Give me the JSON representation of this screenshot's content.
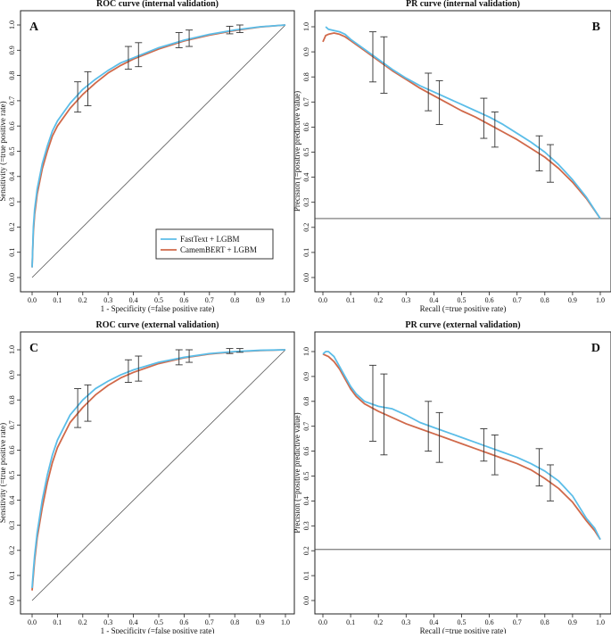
{
  "panels": [
    {
      "id": "A",
      "title": "ROC curve (internal validation)",
      "xlabel": "1 - Specificity (=false positive rate)",
      "ylabel": "Sensitivity (=true positive rate)",
      "type": "roc",
      "diagonal": true,
      "legend": true
    },
    {
      "id": "B",
      "title": "PR curve (internal validation)",
      "xlabel": "Recall (=true positive rate)",
      "ylabel": "Precision (=positive predictive value)",
      "type": "pr",
      "baseline": 0.235,
      "legend": false
    },
    {
      "id": "C",
      "title": "ROC curve (external validation)",
      "xlabel": "1 - Specificity (=false positive rate)",
      "ylabel": "Sensitivity (=true positive rate)",
      "type": "roc",
      "diagonal": true,
      "legend": false
    },
    {
      "id": "D",
      "title": "PR curve (external validation)",
      "xlabel": "Recall (=true positive rate)",
      "ylabel": "Precision (=positive predictive value)",
      "type": "pr",
      "baseline": 0.205,
      "legend": false
    }
  ],
  "legend": {
    "placement": "bottom-right",
    "entries": [
      {
        "label": "FastText + LGBM",
        "color": "#5bbde8"
      },
      {
        "label": "CamemBERT + LGBM",
        "color": "#d0694a"
      }
    ]
  },
  "ticks": [
    "0.0",
    "0.1",
    "0.2",
    "0.3",
    "0.4",
    "0.5",
    "0.6",
    "0.7",
    "0.8",
    "0.9",
    "1.0"
  ],
  "chart_data": [
    {
      "type": "line",
      "panel": "A",
      "title": "ROC curve (internal validation)",
      "xlabel": "1 - Specificity (=false positive rate)",
      "ylabel": "Sensitivity (=true positive rate)",
      "xlim": [
        0,
        1
      ],
      "ylim": [
        0,
        1
      ],
      "series": [
        {
          "name": "FastText + LGBM",
          "color": "#5bbde8",
          "x": [
            0,
            0.005,
            0.01,
            0.02,
            0.04,
            0.06,
            0.08,
            0.1,
            0.15,
            0.2,
            0.25,
            0.3,
            0.35,
            0.4,
            0.5,
            0.6,
            0.7,
            0.8,
            0.9,
            1.0
          ],
          "y": [
            0.04,
            0.2,
            0.27,
            0.35,
            0.45,
            0.52,
            0.58,
            0.62,
            0.69,
            0.745,
            0.785,
            0.82,
            0.85,
            0.87,
            0.91,
            0.94,
            0.963,
            0.98,
            0.993,
            1.0
          ]
        },
        {
          "name": "CamemBERT + LGBM",
          "color": "#d0694a",
          "x": [
            0,
            0.005,
            0.01,
            0.02,
            0.04,
            0.06,
            0.08,
            0.1,
            0.15,
            0.2,
            0.25,
            0.3,
            0.35,
            0.4,
            0.5,
            0.6,
            0.7,
            0.8,
            0.9,
            1.0
          ],
          "y": [
            0.04,
            0.18,
            0.25,
            0.33,
            0.43,
            0.5,
            0.56,
            0.6,
            0.67,
            0.725,
            0.77,
            0.81,
            0.84,
            0.865,
            0.905,
            0.937,
            0.96,
            0.978,
            0.992,
            1.0
          ]
        }
      ],
      "error_bars": [
        {
          "x": 0.18,
          "low": 0.655,
          "high": 0.775
        },
        {
          "x": 0.22,
          "low": 0.68,
          "high": 0.815
        },
        {
          "x": 0.38,
          "low": 0.825,
          "high": 0.915
        },
        {
          "x": 0.42,
          "low": 0.835,
          "high": 0.93
        },
        {
          "x": 0.58,
          "low": 0.91,
          "high": 0.97
        },
        {
          "x": 0.62,
          "low": 0.915,
          "high": 0.98
        },
        {
          "x": 0.78,
          "low": 0.965,
          "high": 0.995
        },
        {
          "x": 0.82,
          "low": 0.97,
          "high": 1.0
        }
      ]
    },
    {
      "type": "line",
      "panel": "B",
      "title": "PR curve (internal validation)",
      "xlabel": "Recall (=true positive rate)",
      "ylabel": "Precision (=positive predictive value)",
      "xlim": [
        0,
        1
      ],
      "ylim": [
        0,
        1
      ],
      "baseline": 0.235,
      "series": [
        {
          "name": "FastText + LGBM",
          "color": "#5bbde8",
          "x": [
            0.01,
            0.02,
            0.04,
            0.06,
            0.08,
            0.1,
            0.15,
            0.2,
            0.25,
            0.3,
            0.35,
            0.4,
            0.45,
            0.5,
            0.55,
            0.6,
            0.65,
            0.7,
            0.75,
            0.8,
            0.85,
            0.9,
            0.95,
            1.0
          ],
          "y": [
            1.0,
            0.99,
            0.985,
            0.98,
            0.97,
            0.95,
            0.91,
            0.87,
            0.83,
            0.795,
            0.765,
            0.74,
            0.715,
            0.69,
            0.665,
            0.64,
            0.61,
            0.575,
            0.54,
            0.5,
            0.45,
            0.39,
            0.32,
            0.235
          ]
        },
        {
          "name": "CamemBERT + LGBM",
          "color": "#d0694a",
          "x": [
            0.0,
            0.01,
            0.02,
            0.04,
            0.06,
            0.08,
            0.1,
            0.15,
            0.2,
            0.25,
            0.3,
            0.35,
            0.4,
            0.45,
            0.5,
            0.55,
            0.6,
            0.65,
            0.7,
            0.75,
            0.8,
            0.85,
            0.9,
            0.95,
            1.0
          ],
          "y": [
            0.94,
            0.965,
            0.97,
            0.975,
            0.97,
            0.96,
            0.945,
            0.905,
            0.865,
            0.825,
            0.79,
            0.755,
            0.725,
            0.695,
            0.665,
            0.64,
            0.61,
            0.58,
            0.55,
            0.515,
            0.48,
            0.435,
            0.38,
            0.315,
            0.235
          ]
        }
      ],
      "error_bars": [
        {
          "x": 0.18,
          "low": 0.78,
          "high": 0.98
        },
        {
          "x": 0.22,
          "low": 0.735,
          "high": 0.96
        },
        {
          "x": 0.38,
          "low": 0.665,
          "high": 0.815
        },
        {
          "x": 0.42,
          "low": 0.61,
          "high": 0.785
        },
        {
          "x": 0.58,
          "low": 0.555,
          "high": 0.715
        },
        {
          "x": 0.62,
          "low": 0.52,
          "high": 0.66
        },
        {
          "x": 0.78,
          "low": 0.425,
          "high": 0.565
        },
        {
          "x": 0.82,
          "low": 0.38,
          "high": 0.53
        }
      ]
    },
    {
      "type": "line",
      "panel": "C",
      "title": "ROC curve (external validation)",
      "xlabel": "1 - Specificity (=false positive rate)",
      "ylabel": "Sensitivity (=true positive rate)",
      "xlim": [
        0,
        1
      ],
      "ylim": [
        0,
        1
      ],
      "series": [
        {
          "name": "FastText + LGBM",
          "color": "#5bbde8",
          "x": [
            0,
            0.005,
            0.01,
            0.02,
            0.04,
            0.06,
            0.08,
            0.1,
            0.15,
            0.2,
            0.25,
            0.3,
            0.35,
            0.4,
            0.5,
            0.6,
            0.7,
            0.8,
            0.9,
            1.0
          ],
          "y": [
            0.05,
            0.12,
            0.18,
            0.27,
            0.4,
            0.5,
            0.58,
            0.64,
            0.74,
            0.8,
            0.845,
            0.875,
            0.9,
            0.92,
            0.95,
            0.97,
            0.985,
            0.993,
            0.998,
            1.0
          ]
        },
        {
          "name": "CamemBERT + LGBM",
          "color": "#d0694a",
          "x": [
            0,
            0.005,
            0.01,
            0.02,
            0.04,
            0.06,
            0.08,
            0.1,
            0.15,
            0.2,
            0.25,
            0.3,
            0.35,
            0.4,
            0.5,
            0.6,
            0.7,
            0.8,
            0.9,
            1.0
          ],
          "y": [
            0.04,
            0.1,
            0.16,
            0.25,
            0.37,
            0.47,
            0.55,
            0.61,
            0.71,
            0.77,
            0.82,
            0.858,
            0.888,
            0.91,
            0.945,
            0.968,
            0.983,
            0.992,
            0.997,
            1.0
          ]
        }
      ],
      "error_bars": [
        {
          "x": 0.18,
          "low": 0.69,
          "high": 0.845
        },
        {
          "x": 0.22,
          "low": 0.715,
          "high": 0.86
        },
        {
          "x": 0.38,
          "low": 0.87,
          "high": 0.96
        },
        {
          "x": 0.42,
          "low": 0.875,
          "high": 0.975
        },
        {
          "x": 0.58,
          "low": 0.94,
          "high": 1.0
        },
        {
          "x": 0.62,
          "low": 0.95,
          "high": 1.0
        },
        {
          "x": 0.78,
          "low": 0.985,
          "high": 1.005
        },
        {
          "x": 0.82,
          "low": 0.99,
          "high": 1.005
        }
      ]
    },
    {
      "type": "line",
      "panel": "D",
      "title": "PR curve (external validation)",
      "xlabel": "Recall (=true positive rate)",
      "ylabel": "Precision (=positive predictive value)",
      "xlim": [
        0,
        1
      ],
      "ylim": [
        0,
        1
      ],
      "baseline": 0.205,
      "series": [
        {
          "name": "FastText + LGBM",
          "color": "#5bbde8",
          "x": [
            0.0,
            0.01,
            0.02,
            0.04,
            0.06,
            0.08,
            0.1,
            0.12,
            0.15,
            0.2,
            0.25,
            0.3,
            0.35,
            0.4,
            0.45,
            0.5,
            0.55,
            0.6,
            0.65,
            0.7,
            0.75,
            0.8,
            0.85,
            0.9,
            0.95,
            0.98,
            1.0
          ],
          "y": [
            0.99,
            1.0,
            1.0,
            0.98,
            0.94,
            0.9,
            0.86,
            0.83,
            0.8,
            0.78,
            0.77,
            0.745,
            0.715,
            0.695,
            0.675,
            0.655,
            0.635,
            0.615,
            0.595,
            0.575,
            0.55,
            0.52,
            0.48,
            0.42,
            0.33,
            0.29,
            0.245
          ]
        },
        {
          "name": "CamemBERT + LGBM",
          "color": "#d0694a",
          "x": [
            0.0,
            0.01,
            0.02,
            0.04,
            0.06,
            0.08,
            0.1,
            0.12,
            0.15,
            0.2,
            0.25,
            0.3,
            0.35,
            0.4,
            0.45,
            0.5,
            0.55,
            0.6,
            0.65,
            0.7,
            0.75,
            0.8,
            0.85,
            0.9,
            0.95,
            0.98,
            1.0
          ],
          "y": [
            0.99,
            0.985,
            0.98,
            0.96,
            0.93,
            0.89,
            0.85,
            0.82,
            0.79,
            0.76,
            0.735,
            0.71,
            0.69,
            0.67,
            0.65,
            0.63,
            0.61,
            0.59,
            0.57,
            0.55,
            0.525,
            0.49,
            0.45,
            0.395,
            0.32,
            0.28,
            0.245
          ]
        }
      ],
      "error_bars": [
        {
          "x": 0.18,
          "low": 0.64,
          "high": 0.945
        },
        {
          "x": 0.22,
          "low": 0.585,
          "high": 0.91
        },
        {
          "x": 0.38,
          "low": 0.6,
          "high": 0.8
        },
        {
          "x": 0.42,
          "low": 0.555,
          "high": 0.755
        },
        {
          "x": 0.58,
          "low": 0.56,
          "high": 0.69
        },
        {
          "x": 0.62,
          "low": 0.505,
          "high": 0.665
        },
        {
          "x": 0.78,
          "low": 0.46,
          "high": 0.61
        },
        {
          "x": 0.82,
          "low": 0.4,
          "high": 0.545
        }
      ]
    }
  ]
}
